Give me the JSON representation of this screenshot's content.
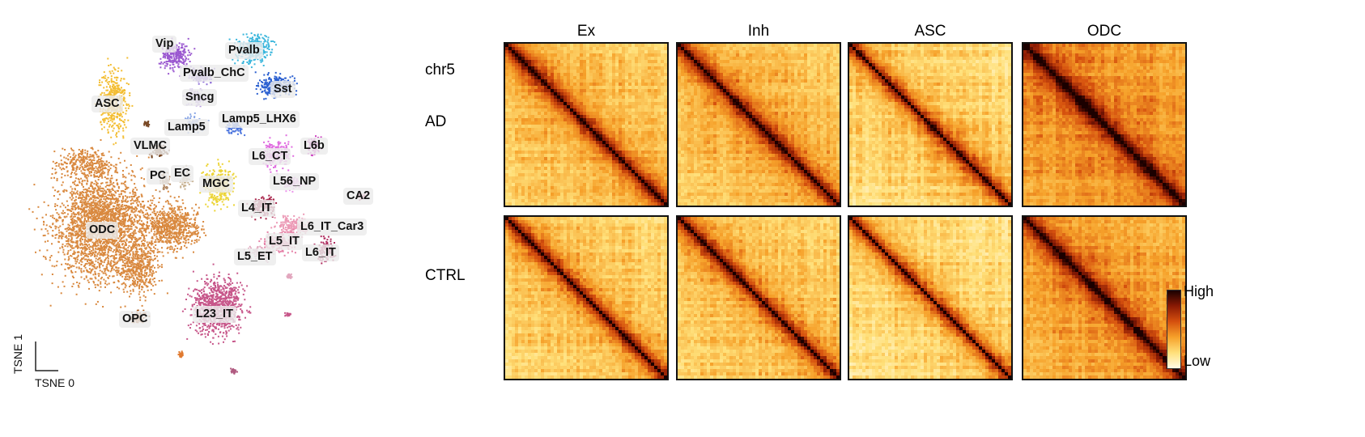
{
  "tsne": {
    "x_axis_label": "TSNE 0",
    "y_axis_label": "TSNE 1",
    "clusters": [
      {
        "label": "Vip",
        "color": "#9b59d0"
      },
      {
        "label": "Pvalb",
        "color": "#3ab6dc"
      },
      {
        "label": "Pvalb_ChC",
        "color": "#8f6fd8"
      },
      {
        "label": "Sst",
        "color": "#2a5fd0"
      },
      {
        "label": "Sncg",
        "color": "#b394e0"
      },
      {
        "label": "ASC",
        "color": "#f3bd32"
      },
      {
        "label": "Lamp5",
        "color": "#8aa7e6"
      },
      {
        "label": "Lamp5_LHX6",
        "color": "#4b74de"
      },
      {
        "label": "VLMC",
        "color": "#7a4a26"
      },
      {
        "label": "L6_CT",
        "color": "#e06de0"
      },
      {
        "label": "L6b",
        "color": "#cc3fc0"
      },
      {
        "label": "PC",
        "color": "#b38a66"
      },
      {
        "label": "EC",
        "color": "#c7b08e"
      },
      {
        "label": "MGC",
        "color": "#ecd435"
      },
      {
        "label": "L56_NP",
        "color": "#ec95ec"
      },
      {
        "label": "CA2",
        "color": "#b03a6a"
      },
      {
        "label": "L4_IT",
        "color": "#a8234a"
      },
      {
        "label": "ODC",
        "color": "#d9893f"
      },
      {
        "label": "L6_IT_Car3",
        "color": "#ec9ab6"
      },
      {
        "label": "L5_IT",
        "color": "#e57fa6"
      },
      {
        "label": "L5_ET",
        "color": "#e2a7be"
      },
      {
        "label": "L6_IT",
        "color": "#b02d60"
      },
      {
        "label": "OPC",
        "color": "#a8581c"
      },
      {
        "label": "L23_IT",
        "color": "#c7578a"
      }
    ]
  },
  "hic": {
    "columns": [
      "Ex",
      "Inh",
      "ASC",
      "ODC"
    ],
    "rows": [
      {
        "label": "chr5",
        "sub": "AD"
      },
      {
        "label": "CTRL",
        "sub": ""
      }
    ],
    "colorbar": {
      "high": "High",
      "low": "Low",
      "colors": [
        "#fffbe6",
        "#ffe07a",
        "#f6a12a",
        "#d5500e",
        "#8a1a04",
        "#1a0000"
      ]
    }
  }
}
